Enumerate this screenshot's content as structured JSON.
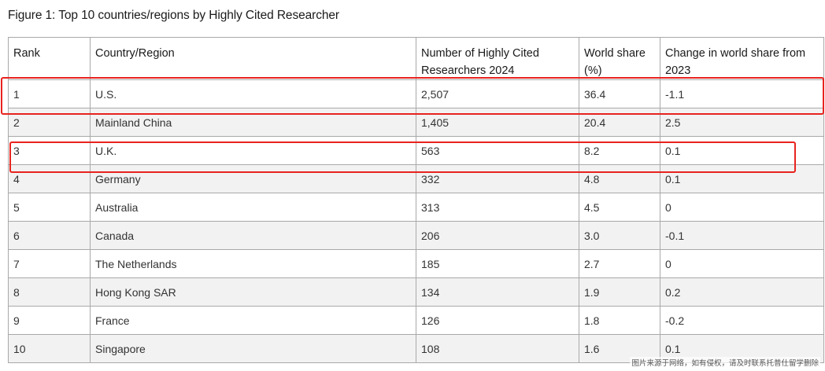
{
  "title": "Figure 1: Top 10 countries/regions by Highly Cited Researcher",
  "table": {
    "headers": [
      "Rank",
      "Country/Region",
      "Number of Highly Cited Researchers 2024",
      "World share (%)",
      "Change in world share from 2023"
    ],
    "rows": [
      [
        "1",
        "U.S.",
        "2,507",
        "36.4",
        "-1.1"
      ],
      [
        "2",
        "Mainland China",
        "1,405",
        "20.4",
        "2.5"
      ],
      [
        "3",
        "U.K.",
        "563",
        "8.2",
        "0.1"
      ],
      [
        "4",
        "Germany",
        "332",
        "4.8",
        "0.1"
      ],
      [
        "5",
        "Australia",
        "313",
        "4.5",
        "0"
      ],
      [
        "6",
        "Canada",
        "206",
        "3.0",
        "-0.1"
      ],
      [
        "7",
        "The Netherlands",
        "185",
        "2.7",
        "0"
      ],
      [
        "8",
        "Hong Kong SAR",
        "134",
        "1.9",
        "0.2"
      ],
      [
        "9",
        "France",
        "126",
        "1.8",
        "-0.2"
      ],
      [
        "10",
        "Singapore",
        "108",
        "1.6",
        "0.1"
      ]
    ]
  },
  "highlight_color": "#e8231f",
  "watermark": "图片来源于网络，如有侵权，请及时联系托普仕留学删除"
}
